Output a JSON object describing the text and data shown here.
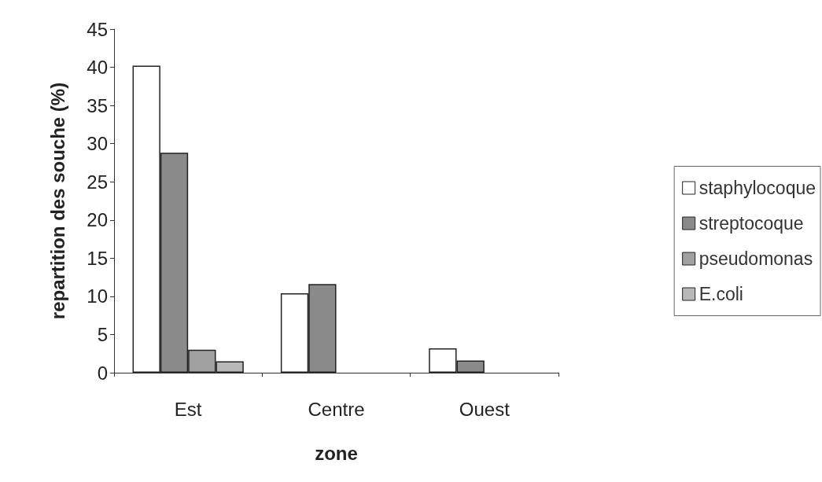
{
  "chart_data": {
    "type": "bar",
    "xlabel": "zone",
    "ylabel": "repartition des souche (%)",
    "categories": [
      "Est",
      "Centre",
      "Ouest"
    ],
    "series": [
      {
        "name": "staphylocoque",
        "color": "#ffffff",
        "values": [
          40.2,
          10.4,
          3.2
        ]
      },
      {
        "name": "streptocoque",
        "color": "#8a8a8a",
        "values": [
          28.8,
          11.6,
          1.6
        ]
      },
      {
        "name": "pseudomonas",
        "color": "#a0a0a0",
        "values": [
          3.0,
          0,
          0
        ]
      },
      {
        "name": "E.coli",
        "color": "#b8b8b8",
        "values": [
          1.5,
          0,
          0
        ]
      }
    ],
    "ylim": [
      0,
      45
    ],
    "yticks": [
      0,
      5,
      10,
      15,
      20,
      25,
      30,
      35,
      40,
      45
    ],
    "grid": false,
    "legend": "right"
  }
}
